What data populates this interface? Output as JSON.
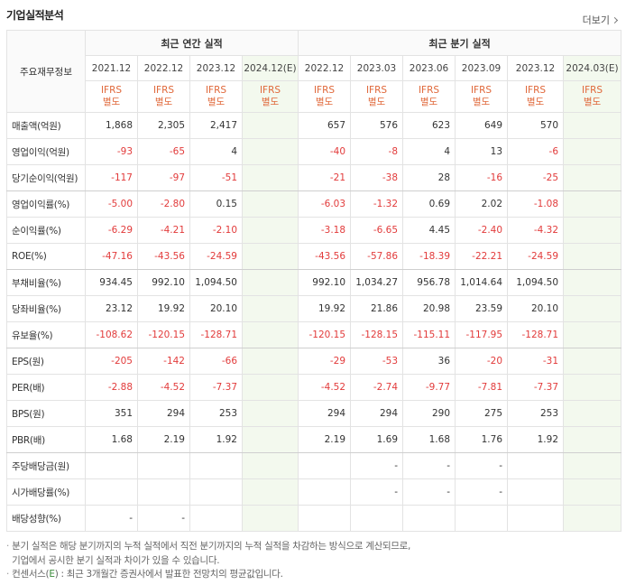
{
  "header": {
    "title": "기업실적분석",
    "more_label": "더보기"
  },
  "table": {
    "row_header_label": "주요재무정보",
    "annual_group": "최근 연간 실적",
    "quarter_group": "최근 분기 실적",
    "annual_periods": [
      "2021.12",
      "2022.12",
      "2023.12",
      "2024.12(E)"
    ],
    "quarter_periods": [
      "2022.12",
      "2023.03",
      "2023.06",
      "2023.09",
      "2023.12",
      "2024.03(E)"
    ],
    "ifrs_top": "IFRS",
    "ifrs_bottom": "별도",
    "rows": [
      {
        "label": "매출액(억원)",
        "a": [
          "1,868",
          "2,305",
          "2,417",
          ""
        ],
        "q": [
          "657",
          "576",
          "623",
          "649",
          "570",
          ""
        ]
      },
      {
        "label": "영업이익(억원)",
        "a": [
          "-93",
          "-65",
          "4",
          ""
        ],
        "q": [
          "-40",
          "-8",
          "4",
          "13",
          "-6",
          ""
        ]
      },
      {
        "label": "당기순이익(억원)",
        "a": [
          "-117",
          "-97",
          "-51",
          ""
        ],
        "q": [
          "-21",
          "-38",
          "28",
          "-16",
          "-25",
          ""
        ]
      },
      {
        "label": "영업이익률(%)",
        "a": [
          "-5.00",
          "-2.80",
          "0.15",
          ""
        ],
        "q": [
          "-6.03",
          "-1.32",
          "0.69",
          "2.02",
          "-1.08",
          ""
        ]
      },
      {
        "label": "순이익률(%)",
        "a": [
          "-6.29",
          "-4.21",
          "-2.10",
          ""
        ],
        "q": [
          "-3.18",
          "-6.65",
          "4.45",
          "-2.40",
          "-4.32",
          ""
        ]
      },
      {
        "label": "ROE(%)",
        "a": [
          "-47.16",
          "-43.56",
          "-24.59",
          ""
        ],
        "q": [
          "-43.56",
          "-57.86",
          "-18.39",
          "-22.21",
          "-24.59",
          ""
        ]
      },
      {
        "label": "부채비율(%)",
        "a": [
          "934.45",
          "992.10",
          "1,094.50",
          ""
        ],
        "q": [
          "992.10",
          "1,034.27",
          "956.78",
          "1,014.64",
          "1,094.50",
          ""
        ]
      },
      {
        "label": "당좌비율(%)",
        "a": [
          "23.12",
          "19.92",
          "20.10",
          ""
        ],
        "q": [
          "19.92",
          "21.86",
          "20.98",
          "23.59",
          "20.10",
          ""
        ]
      },
      {
        "label": "유보율(%)",
        "a": [
          "-108.62",
          "-120.15",
          "-128.71",
          ""
        ],
        "q": [
          "-120.15",
          "-128.15",
          "-115.11",
          "-117.95",
          "-128.71",
          ""
        ]
      },
      {
        "label": "EPS(원)",
        "a": [
          "-205",
          "-142",
          "-66",
          ""
        ],
        "q": [
          "-29",
          "-53",
          "36",
          "-20",
          "-31",
          ""
        ]
      },
      {
        "label": "PER(배)",
        "a": [
          "-2.88",
          "-4.52",
          "-7.37",
          ""
        ],
        "q": [
          "-4.52",
          "-2.74",
          "-9.77",
          "-7.81",
          "-7.37",
          ""
        ]
      },
      {
        "label": "BPS(원)",
        "a": [
          "351",
          "294",
          "253",
          ""
        ],
        "q": [
          "294",
          "294",
          "290",
          "275",
          "253",
          ""
        ]
      },
      {
        "label": "PBR(배)",
        "a": [
          "1.68",
          "2.19",
          "1.92",
          ""
        ],
        "q": [
          "2.19",
          "1.69",
          "1.68",
          "1.76",
          "1.92",
          ""
        ]
      },
      {
        "label": "주당배당금(원)",
        "a": [
          "",
          "",
          "",
          ""
        ],
        "q": [
          "",
          "-",
          "-",
          "-",
          "",
          ""
        ]
      },
      {
        "label": "시가배당률(%)",
        "a": [
          "",
          "",
          "",
          ""
        ],
        "q": [
          "",
          "-",
          "-",
          "-",
          "",
          ""
        ]
      },
      {
        "label": "배당성향(%)",
        "a": [
          "-",
          "-",
          "",
          ""
        ],
        "q": [
          "",
          "",
          "",
          "",
          "",
          ""
        ]
      }
    ]
  },
  "notes": {
    "line1": "분기 실적은 해당 분기까지의 누적 실적에서 직전 분기까지의 누적 실적을 차감하는 방식으로 계산되므로,",
    "line2": "기업에서 공시한 분기 실적과 차이가 있을 수 있습니다.",
    "line3_prefix": "컨센서스(",
    "line3_mark": "E",
    "line3_suffix": ") : 최근 3개월간 증권사에서 발표한 전망치의 평균값입니다."
  },
  "colors": {
    "negative": "#e23b3b",
    "ifrs": "#e0683a",
    "estimate_bg": "#f3f9ee"
  }
}
